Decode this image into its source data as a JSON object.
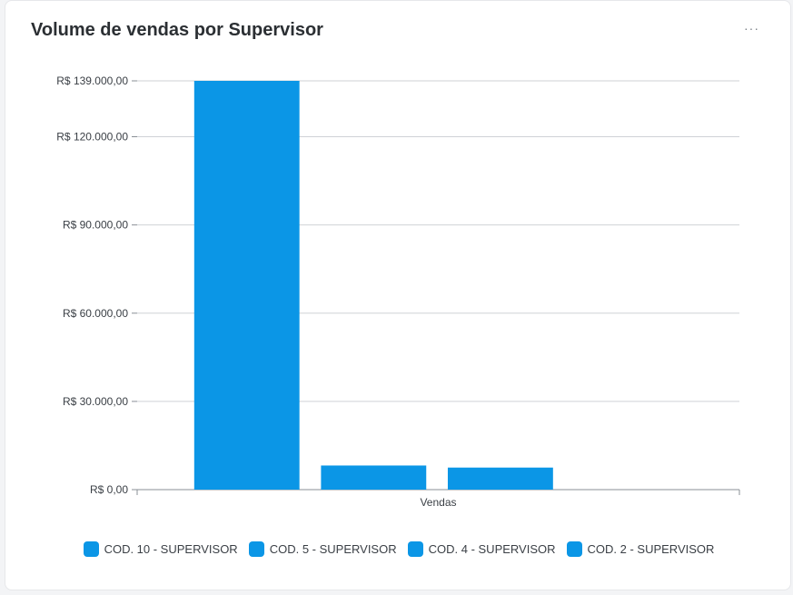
{
  "card": {
    "title": "Volume de vendas por Supervisor",
    "menu_label": "···"
  },
  "colors": {
    "bar": "#0b96e6",
    "grid": "#cfd2d6",
    "axis": "#8a8f96"
  },
  "chart_data": {
    "type": "bar",
    "title": "Volume de vendas por Supervisor",
    "xlabel": "",
    "ylabel": "",
    "categories": [
      "Vendas"
    ],
    "series": [
      {
        "name": "COD. 10 - SUPERVISOR",
        "values": [
          139000
        ]
      },
      {
        "name": "COD. 5 - SUPERVISOR",
        "values": [
          8200
        ]
      },
      {
        "name": "COD. 4 - SUPERVISOR",
        "values": [
          7500
        ]
      },
      {
        "name": "COD. 2 - SUPERVISOR",
        "values": [
          0
        ]
      }
    ],
    "y_ticks": [
      {
        "value": 0,
        "label": "R$ 0,00"
      },
      {
        "value": 30000,
        "label": "R$ 30.000,00"
      },
      {
        "value": 60000,
        "label": "R$ 60.000,00"
      },
      {
        "value": 90000,
        "label": "R$ 90.000,00"
      },
      {
        "value": 120000,
        "label": "R$ 120.000,00"
      },
      {
        "value": 139000,
        "label": "R$ 139.000,00"
      }
    ],
    "ylim": [
      0,
      139000
    ],
    "grid": true,
    "legend": "bottom"
  }
}
